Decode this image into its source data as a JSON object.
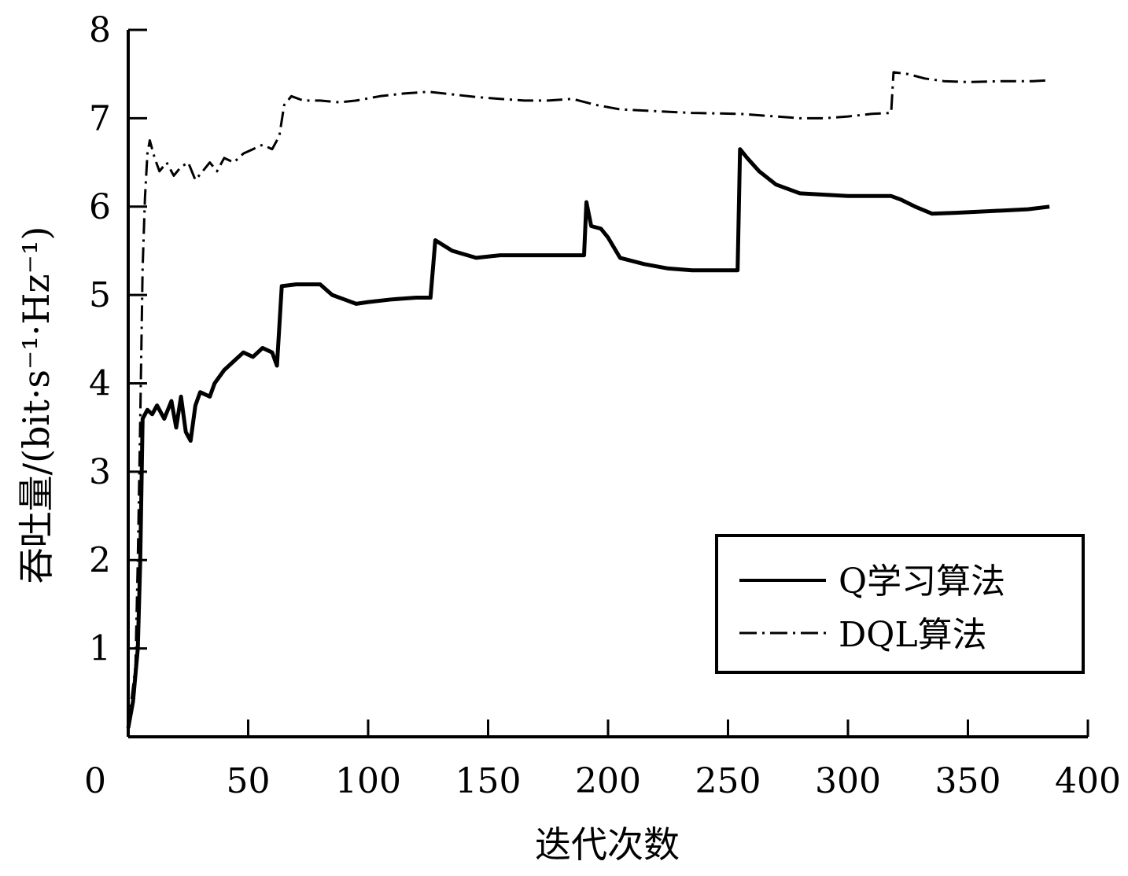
{
  "chart_data": {
    "type": "line",
    "title": "",
    "xlabel": "迭代次数",
    "ylabel": "吞吐量/(bit·s⁻¹·Hz⁻¹)",
    "xlim": [
      0,
      400
    ],
    "ylim": [
      0,
      8
    ],
    "x_ticks": [
      0,
      50,
      100,
      150,
      200,
      250,
      300,
      350,
      400
    ],
    "y_ticks": [
      1,
      2,
      3,
      4,
      5,
      6,
      7,
      8
    ],
    "grid": false,
    "legend_position": "bottom-right",
    "series": [
      {
        "name": "Q学习算法",
        "style": "solid",
        "color": "#000000",
        "points": [
          [
            0,
            0.1
          ],
          [
            2,
            0.4
          ],
          [
            4,
            1.0
          ],
          [
            5,
            2.0
          ],
          [
            6,
            3.6
          ],
          [
            8,
            3.7
          ],
          [
            10,
            3.65
          ],
          [
            12,
            3.75
          ],
          [
            15,
            3.6
          ],
          [
            18,
            3.8
          ],
          [
            20,
            3.5
          ],
          [
            22,
            3.85
          ],
          [
            24,
            3.45
          ],
          [
            26,
            3.35
          ],
          [
            28,
            3.75
          ],
          [
            30,
            3.9
          ],
          [
            34,
            3.85
          ],
          [
            36,
            4.0
          ],
          [
            40,
            4.15
          ],
          [
            44,
            4.25
          ],
          [
            48,
            4.35
          ],
          [
            52,
            4.3
          ],
          [
            56,
            4.4
          ],
          [
            60,
            4.35
          ],
          [
            62,
            4.2
          ],
          [
            64,
            5.1
          ],
          [
            70,
            5.12
          ],
          [
            80,
            5.12
          ],
          [
            85,
            5.0
          ],
          [
            90,
            4.95
          ],
          [
            95,
            4.9
          ],
          [
            100,
            4.92
          ],
          [
            110,
            4.95
          ],
          [
            120,
            4.97
          ],
          [
            126,
            4.97
          ],
          [
            128,
            5.62
          ],
          [
            135,
            5.5
          ],
          [
            145,
            5.42
          ],
          [
            155,
            5.45
          ],
          [
            170,
            5.45
          ],
          [
            180,
            5.45
          ],
          [
            190,
            5.45
          ],
          [
            191,
            6.05
          ],
          [
            193,
            5.78
          ],
          [
            197,
            5.75
          ],
          [
            200,
            5.65
          ],
          [
            205,
            5.42
          ],
          [
            215,
            5.35
          ],
          [
            225,
            5.3
          ],
          [
            235,
            5.28
          ],
          [
            245,
            5.28
          ],
          [
            254,
            5.28
          ],
          [
            255,
            6.65
          ],
          [
            258,
            6.55
          ],
          [
            263,
            6.4
          ],
          [
            270,
            6.25
          ],
          [
            280,
            6.15
          ],
          [
            300,
            6.12
          ],
          [
            318,
            6.12
          ],
          [
            322,
            6.08
          ],
          [
            328,
            6.0
          ],
          [
            335,
            5.92
          ],
          [
            345,
            5.93
          ],
          [
            360,
            5.95
          ],
          [
            375,
            5.97
          ],
          [
            384,
            6.0
          ]
        ]
      },
      {
        "name": "DQL算法",
        "style": "dash-dot",
        "color": "#000000",
        "points": [
          [
            0,
            0.1
          ],
          [
            3,
            0.8
          ],
          [
            4,
            2.0
          ],
          [
            5,
            3.6
          ],
          [
            6,
            5.3
          ],
          [
            7,
            6.1
          ],
          [
            8,
            6.6
          ],
          [
            9,
            6.75
          ],
          [
            11,
            6.55
          ],
          [
            13,
            6.4
          ],
          [
            16,
            6.5
          ],
          [
            19,
            6.35
          ],
          [
            22,
            6.45
          ],
          [
            25,
            6.5
          ],
          [
            28,
            6.3
          ],
          [
            31,
            6.4
          ],
          [
            34,
            6.5
          ],
          [
            37,
            6.4
          ],
          [
            40,
            6.55
          ],
          [
            44,
            6.5
          ],
          [
            48,
            6.6
          ],
          [
            52,
            6.65
          ],
          [
            56,
            6.7
          ],
          [
            60,
            6.65
          ],
          [
            63,
            6.8
          ],
          [
            65,
            7.15
          ],
          [
            68,
            7.25
          ],
          [
            73,
            7.2
          ],
          [
            80,
            7.2
          ],
          [
            88,
            7.18
          ],
          [
            95,
            7.2
          ],
          [
            105,
            7.25
          ],
          [
            115,
            7.28
          ],
          [
            125,
            7.3
          ],
          [
            135,
            7.27
          ],
          [
            145,
            7.24
          ],
          [
            155,
            7.22
          ],
          [
            165,
            7.2
          ],
          [
            175,
            7.2
          ],
          [
            185,
            7.22
          ],
          [
            195,
            7.15
          ],
          [
            205,
            7.1
          ],
          [
            220,
            7.08
          ],
          [
            235,
            7.06
          ],
          [
            255,
            7.05
          ],
          [
            270,
            7.02
          ],
          [
            280,
            7.0
          ],
          [
            290,
            7.0
          ],
          [
            300,
            7.02
          ],
          [
            310,
            7.05
          ],
          [
            318,
            7.06
          ],
          [
            319,
            7.52
          ],
          [
            325,
            7.5
          ],
          [
            332,
            7.45
          ],
          [
            340,
            7.42
          ],
          [
            350,
            7.41
          ],
          [
            365,
            7.42
          ],
          [
            377,
            7.42
          ],
          [
            384,
            7.43
          ]
        ]
      }
    ]
  }
}
